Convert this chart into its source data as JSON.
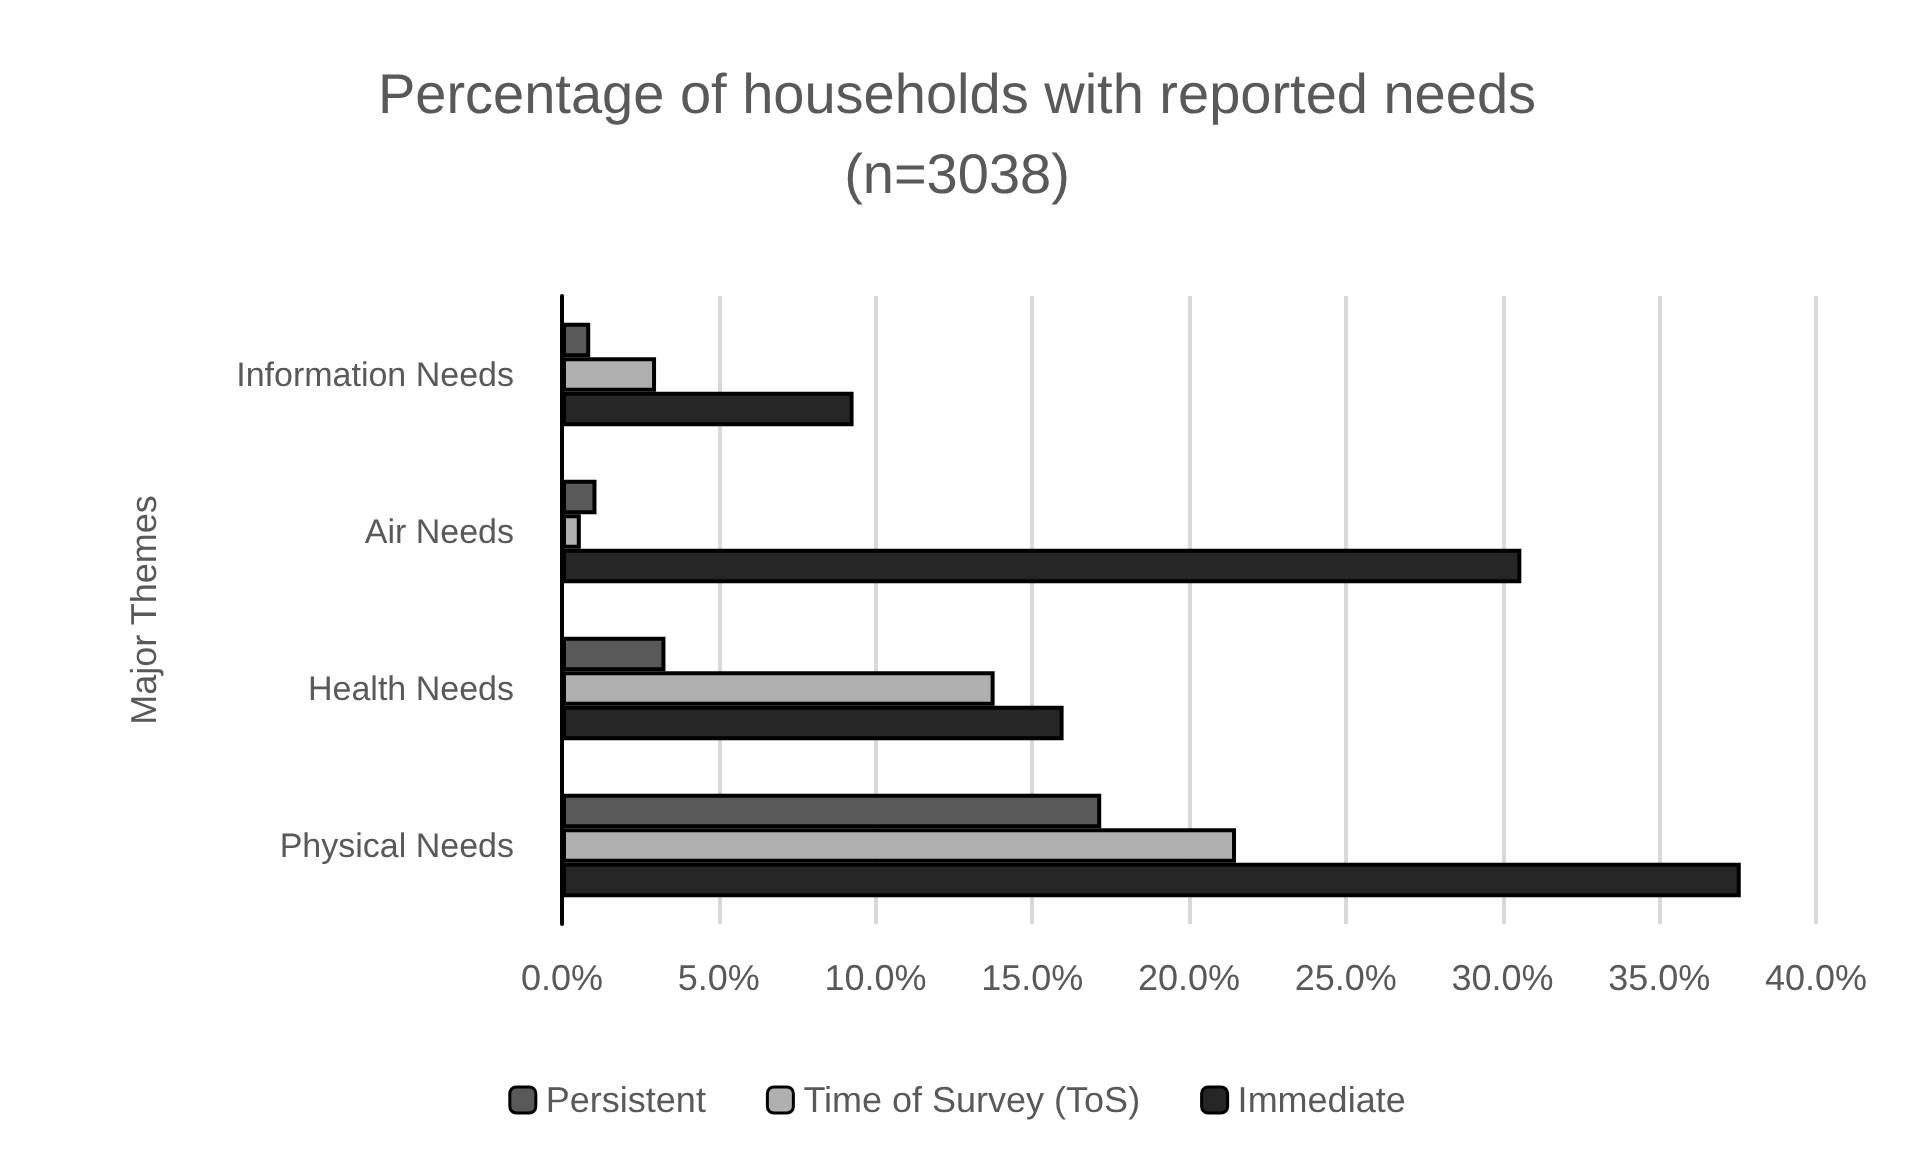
{
  "chart_data": {
    "type": "bar",
    "orientation": "horizontal",
    "title": "Percentage of households with reported needs\n(n=3038)",
    "ylabel": "Major Themes",
    "categories": [
      "Information Needs",
      "Air Needs",
      "Health Needs",
      "Physical Needs"
    ],
    "series": [
      {
        "name": "Persistent",
        "color": "#595959",
        "values": [
          0.9,
          1.1,
          3.3,
          17.2
        ]
      },
      {
        "name": "Time of Survey (ToS)",
        "color": "#afafaf",
        "values": [
          3.0,
          0.6,
          13.8,
          21.5
        ]
      },
      {
        "name": "Immediate",
        "color": "#262626",
        "values": [
          9.3,
          30.6,
          16.0,
          37.6
        ]
      }
    ],
    "xlim": [
      0,
      40
    ],
    "xticks": [
      {
        "value": 0,
        "label": "0.0%"
      },
      {
        "value": 5,
        "label": "5.0%"
      },
      {
        "value": 10,
        "label": "10.0%"
      },
      {
        "value": 15,
        "label": "15.0%"
      },
      {
        "value": 20,
        "label": "20.0%"
      },
      {
        "value": 25,
        "label": "25.0%"
      },
      {
        "value": 30,
        "label": "30.0%"
      },
      {
        "value": 35,
        "label": "35.0%"
      },
      {
        "value": 40,
        "label": "40.0%"
      }
    ],
    "grid": "x",
    "legend": "bottom"
  }
}
